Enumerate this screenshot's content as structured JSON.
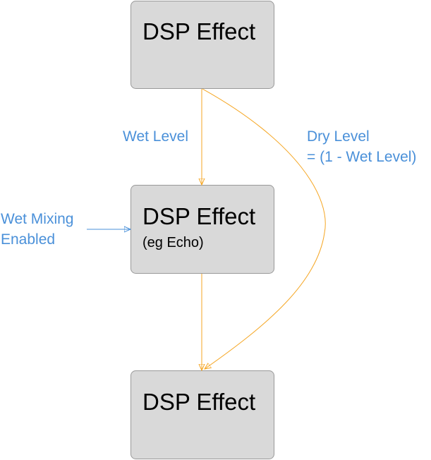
{
  "nodes": [
    {
      "title": "DSP Effect",
      "subtitle": ""
    },
    {
      "title": "DSP Effect",
      "subtitle": "(eg Echo)"
    },
    {
      "title": "DSP Effect",
      "subtitle": ""
    }
  ],
  "edges": {
    "wet_level": "Wet Level",
    "dry_level_line1": "Dry Level",
    "dry_level_line2": "= (1 - Wet Level)",
    "wet_mixing_line1": "Wet Mixing",
    "wet_mixing_line2": "Enabled"
  },
  "colors": {
    "node_fill": "#d9d9d9",
    "node_border": "#999999",
    "edge": "#f5a623",
    "label": "#4a90d9"
  }
}
